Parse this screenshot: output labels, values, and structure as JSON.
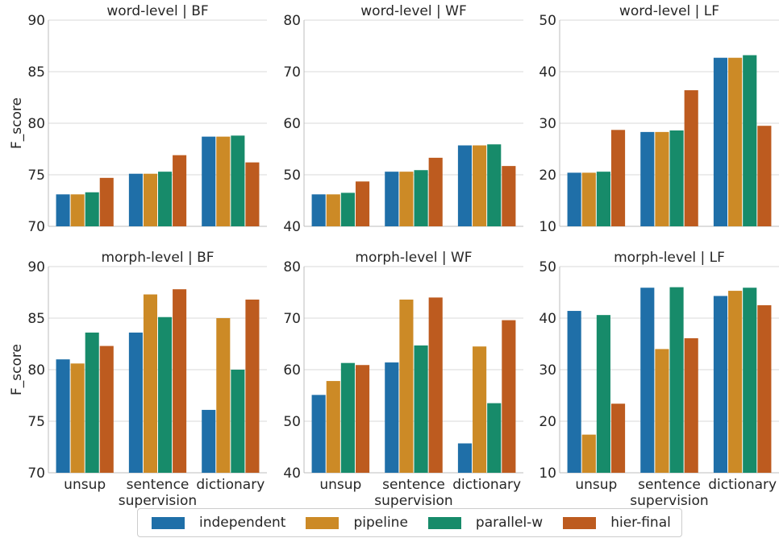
{
  "legend": {
    "items": [
      {
        "label": "independent",
        "color": "#1f6fa8"
      },
      {
        "label": "pipeline",
        "color": "#cc8a26"
      },
      {
        "label": "parallel-w",
        "color": "#178b6a"
      },
      {
        "label": "hier-final",
        "color": "#bd5b1f"
      }
    ]
  },
  "chart_data": [
    {
      "type": "bar",
      "title": "word-level | BF",
      "ylabel": "F_score",
      "ylim": [
        70,
        90
      ],
      "yticks": [
        70,
        75,
        80,
        85,
        90
      ],
      "categories": [
        "unsup",
        "sentence\nsupervision",
        "dictionary"
      ],
      "series": [
        {
          "name": "independent",
          "values": [
            73.1,
            75.1,
            78.7
          ]
        },
        {
          "name": "pipeline",
          "values": [
            73.1,
            75.1,
            78.7
          ]
        },
        {
          "name": "parallel-w",
          "values": [
            73.3,
            75.3,
            78.8
          ]
        },
        {
          "name": "hier-final",
          "values": [
            74.7,
            76.9,
            76.2
          ]
        }
      ]
    },
    {
      "type": "bar",
      "title": "word-level | WF",
      "ylabel": "",
      "ylim": [
        40,
        80
      ],
      "yticks": [
        40,
        50,
        60,
        70,
        80
      ],
      "categories": [
        "unsup",
        "sentence\nsupervision",
        "dictionary"
      ],
      "series": [
        {
          "name": "independent",
          "values": [
            46.2,
            50.6,
            55.7
          ]
        },
        {
          "name": "pipeline",
          "values": [
            46.2,
            50.6,
            55.7
          ]
        },
        {
          "name": "parallel-w",
          "values": [
            46.5,
            50.9,
            55.9
          ]
        },
        {
          "name": "hier-final",
          "values": [
            48.7,
            53.3,
            51.7
          ]
        }
      ]
    },
    {
      "type": "bar",
      "title": "word-level | LF",
      "ylabel": "",
      "ylim": [
        10,
        50
      ],
      "yticks": [
        10,
        20,
        30,
        40,
        50
      ],
      "categories": [
        "unsup",
        "sentence\nsupervision",
        "dictionary"
      ],
      "series": [
        {
          "name": "independent",
          "values": [
            20.4,
            28.3,
            42.7
          ]
        },
        {
          "name": "pipeline",
          "values": [
            20.4,
            28.3,
            42.7
          ]
        },
        {
          "name": "parallel-w",
          "values": [
            20.6,
            28.6,
            43.2
          ]
        },
        {
          "name": "hier-final",
          "values": [
            28.7,
            36.4,
            29.5
          ]
        }
      ]
    },
    {
      "type": "bar",
      "title": "morph-level | BF",
      "ylabel": "F_score",
      "ylim": [
        70,
        90
      ],
      "yticks": [
        70,
        75,
        80,
        85,
        90
      ],
      "categories": [
        "unsup",
        "sentence\nsupervision",
        "dictionary"
      ],
      "series": [
        {
          "name": "independent",
          "values": [
            81.0,
            83.6,
            76.1
          ]
        },
        {
          "name": "pipeline",
          "values": [
            80.6,
            87.3,
            85.0
          ]
        },
        {
          "name": "parallel-w",
          "values": [
            83.6,
            85.1,
            80.0
          ]
        },
        {
          "name": "hier-final",
          "values": [
            82.3,
            87.8,
            86.8
          ]
        }
      ]
    },
    {
      "type": "bar",
      "title": "morph-level | WF",
      "ylabel": "",
      "ylim": [
        40,
        80
      ],
      "yticks": [
        40,
        50,
        60,
        70,
        80
      ],
      "categories": [
        "unsup",
        "sentence\nsupervision",
        "dictionary"
      ],
      "series": [
        {
          "name": "independent",
          "values": [
            55.1,
            61.4,
            45.7
          ]
        },
        {
          "name": "pipeline",
          "values": [
            57.8,
            73.6,
            64.5
          ]
        },
        {
          "name": "parallel-w",
          "values": [
            61.3,
            64.7,
            53.5
          ]
        },
        {
          "name": "hier-final",
          "values": [
            60.9,
            74.0,
            69.6
          ]
        }
      ]
    },
    {
      "type": "bar",
      "title": "morph-level | LF",
      "ylabel": "",
      "ylim": [
        10,
        50
      ],
      "yticks": [
        10,
        20,
        30,
        40,
        50
      ],
      "categories": [
        "unsup",
        "sentence\nsupervision",
        "dictionary"
      ],
      "series": [
        {
          "name": "independent",
          "values": [
            41.4,
            45.9,
            44.3
          ]
        },
        {
          "name": "pipeline",
          "values": [
            17.4,
            34.0,
            45.3
          ]
        },
        {
          "name": "parallel-w",
          "values": [
            40.6,
            46.0,
            45.9
          ]
        },
        {
          "name": "hier-final",
          "values": [
            23.4,
            36.1,
            42.5
          ]
        }
      ]
    }
  ]
}
